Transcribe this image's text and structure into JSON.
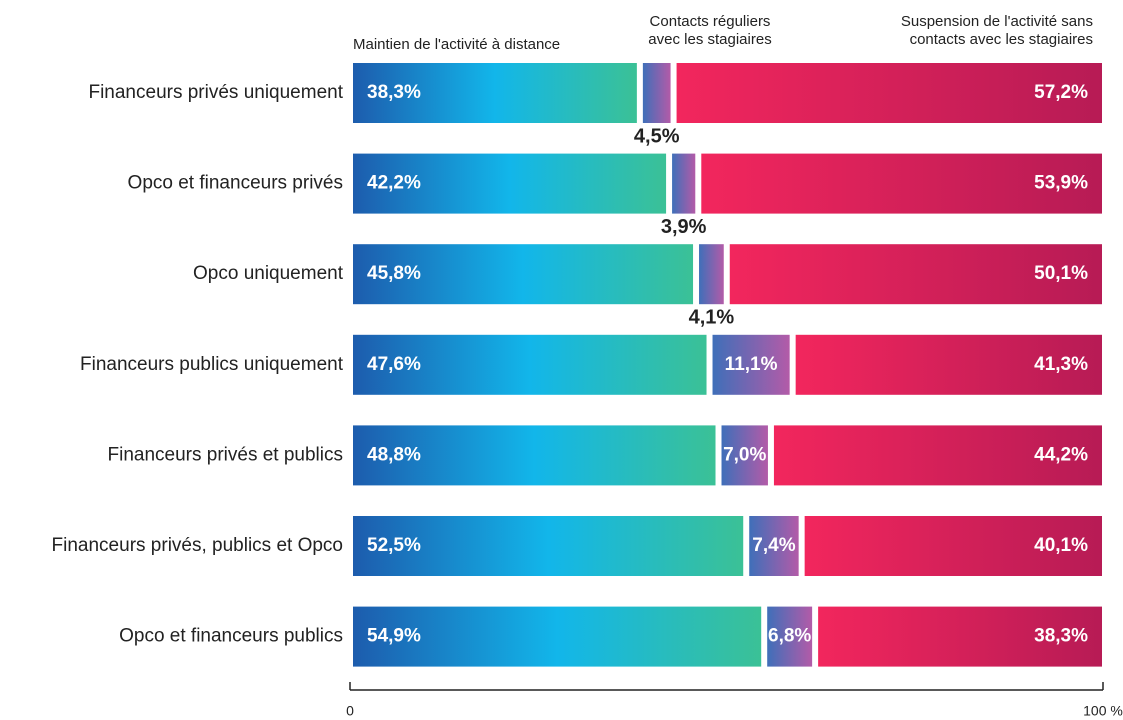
{
  "chart_data": {
    "type": "stacked-bar-horizontal",
    "categories": [
      "Financeurs privés uniquement",
      "Opco et financeurs privés",
      "Opco uniquement",
      "Financeurs publics uniquement",
      "Financeurs privés et publics",
      "Financeurs privés, publics et Opco",
      "Opco et financeurs publics"
    ],
    "series": [
      {
        "name": "Maintien de l'activité à distance",
        "color": [
          "#1d5cad",
          "#12b6ea",
          "#3bc196"
        ],
        "values": [
          38.3,
          42.2,
          45.8,
          47.6,
          48.8,
          52.5,
          54.9
        ],
        "value_labels": [
          "38,3%",
          "42,2%",
          "45,8%",
          "47,6%",
          "48,8%",
          "52,5%",
          "54,9%"
        ]
      },
      {
        "name": "Contacts réguliers\navec les stagiaires",
        "color": [
          "#3f6fb9",
          "#b35ba8"
        ],
        "values": [
          4.5,
          3.9,
          4.1,
          11.1,
          7.0,
          7.4,
          6.8
        ],
        "value_labels": [
          "4,5%",
          "3,9%",
          "4,1%",
          "11,1%",
          "7,0%",
          "7,4%",
          "6,8%"
        ]
      },
      {
        "name": "Suspension de l'activité sans\ncontacts avec les stagiaires",
        "color": [
          "#f2265d",
          "#b71b55"
        ],
        "values": [
          57.2,
          53.9,
          50.1,
          41.3,
          44.2,
          40.1,
          38.3
        ],
        "value_labels": [
          "57,2%",
          "53,9%",
          "50,1%",
          "41,3%",
          "44,2%",
          "40,1%",
          "38,3%"
        ]
      }
    ],
    "xlim": [
      0,
      100
    ],
    "xticks": [
      0,
      {
        "value": 100,
        "label": "100 %"
      }
    ]
  }
}
